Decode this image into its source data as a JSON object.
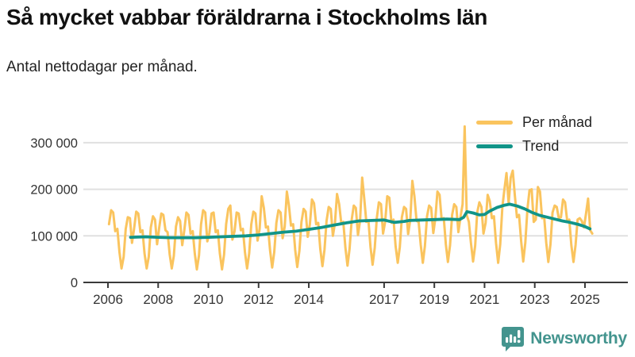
{
  "page": {
    "title": "Så mycket vabbar föräldrarna i Stockholms län",
    "subtitle": "Antal nettodagar per månad."
  },
  "footer": {
    "brand": "Newsworthy"
  },
  "colors": {
    "monthly_line": "#fac45e",
    "trend_line": "#119488",
    "brand_teal": "#43948e",
    "grid": "#e0e0e0",
    "axis": "#3a3a3a",
    "tick_text": "#333333"
  },
  "chart_data": {
    "type": "line",
    "title": "Så mycket vabbar föräldrarna i Stockholms län",
    "subtitle": "Antal nettodagar per månad.",
    "xlabel": "",
    "ylabel": "Antal nettodagar per månad",
    "grid": "horizontal",
    "legend_position": "top-right",
    "ylim": [
      0,
      340000
    ],
    "yticks": [
      0,
      100000,
      200000,
      300000
    ],
    "ytick_labels": [
      "0",
      "100 000",
      "200 000",
      "300 000"
    ],
    "xtick_years": [
      2006,
      2008,
      2010,
      2012,
      2014,
      2017,
      2019,
      2021,
      2023,
      2025
    ],
    "x_range_years": [
      2006.0,
      2025.4
    ],
    "series": [
      {
        "name": "Per månad",
        "color": "#fac45e",
        "sampling": "monthly",
        "start_year": 2006,
        "start_month": 1,
        "values": [
          125000,
          155000,
          150000,
          110000,
          115000,
          65000,
          30000,
          55000,
          115000,
          140000,
          138000,
          85000,
          115000,
          152000,
          148000,
          108000,
          112000,
          62000,
          30000,
          55000,
          118000,
          142000,
          135000,
          82000,
          118000,
          148000,
          145000,
          112000,
          108000,
          60000,
          30000,
          57000,
          120000,
          140000,
          132000,
          80000,
          112000,
          150000,
          145000,
          105000,
          110000,
          62000,
          28000,
          58000,
          125000,
          155000,
          150000,
          88000,
          106000,
          148000,
          150000,
          108000,
          112000,
          62000,
          28000,
          60000,
          125000,
          158000,
          165000,
          92000,
          110000,
          150000,
          148000,
          112000,
          115000,
          65000,
          30000,
          62000,
          125000,
          152000,
          148000,
          90000,
          115000,
          185000,
          160000,
          118000,
          120000,
          68000,
          32000,
          65000,
          128000,
          155000,
          150000,
          95000,
          120000,
          195000,
          165000,
          122000,
          125000,
          70000,
          33000,
          68000,
          130000,
          158000,
          152000,
          98000,
          125000,
          178000,
          170000,
          125000,
          128000,
          72000,
          35000,
          70000,
          132000,
          162000,
          158000,
          100000,
          128000,
          190000,
          168000,
          128000,
          130000,
          74000,
          36000,
          72000,
          135000,
          165000,
          160000,
          102000,
          132000,
          225000,
          180000,
          130000,
          132000,
          76000,
          38000,
          74000,
          138000,
          172000,
          168000,
          105000,
          130000,
          185000,
          182000,
          128000,
          135000,
          78000,
          42000,
          76000,
          140000,
          162000,
          158000,
          104000,
          135000,
          218000,
          185000,
          132000,
          130000,
          80000,
          42000,
          78000,
          142000,
          165000,
          160000,
          106000,
          138000,
          195000,
          188000,
          135000,
          138000,
          82000,
          44000,
          80000,
          145000,
          168000,
          162000,
          108000,
          140000,
          168000,
          335000,
          145000,
          130000,
          85000,
          45000,
          78000,
          150000,
          172000,
          162000,
          105000,
          128000,
          188000,
          175000,
          138000,
          142000,
          85000,
          42000,
          82000,
          162000,
          200000,
          235000,
          170000,
          225000,
          240000,
          185000,
          140000,
          145000,
          88000,
          45000,
          85000,
          158000,
          198000,
          200000,
          130000,
          135000,
          205000,
          195000,
          138000,
          140000,
          85000,
          44000,
          82000,
          150000,
          165000,
          162000,
          138000,
          140000,
          178000,
          172000,
          132000,
          135000,
          80000,
          44000,
          80000,
          135000,
          138000,
          132000,
          118000,
          148000,
          180000,
          112000,
          105000
        ]
      },
      {
        "name": "Trend",
        "color": "#119488",
        "sampling": "smoothed-anchors",
        "points": [
          [
            2006.9,
            97000
          ],
          [
            2007.5,
            98000
          ],
          [
            2008.0,
            97000
          ],
          [
            2008.5,
            96000
          ],
          [
            2009.0,
            96000
          ],
          [
            2009.5,
            96000
          ],
          [
            2010.0,
            97000
          ],
          [
            2010.5,
            98000
          ],
          [
            2011.0,
            99000
          ],
          [
            2011.5,
            100000
          ],
          [
            2012.0,
            102000
          ],
          [
            2012.5,
            105000
          ],
          [
            2013.0,
            108000
          ],
          [
            2013.5,
            110000
          ],
          [
            2014.0,
            114000
          ],
          [
            2014.5,
            118000
          ],
          [
            2015.0,
            123000
          ],
          [
            2015.5,
            128000
          ],
          [
            2016.0,
            132000
          ],
          [
            2016.5,
            133000
          ],
          [
            2017.0,
            134000
          ],
          [
            2017.4,
            129000
          ],
          [
            2017.8,
            131000
          ],
          [
            2018.0,
            133000
          ],
          [
            2018.5,
            134000
          ],
          [
            2019.0,
            135000
          ],
          [
            2019.5,
            136000
          ],
          [
            2020.0,
            135000
          ],
          [
            2020.17,
            140000
          ],
          [
            2020.3,
            152000
          ],
          [
            2020.55,
            149000
          ],
          [
            2020.8,
            145000
          ],
          [
            2021.0,
            146000
          ],
          [
            2021.2,
            153000
          ],
          [
            2021.5,
            161000
          ],
          [
            2021.8,
            166000
          ],
          [
            2022.0,
            168000
          ],
          [
            2022.3,
            164000
          ],
          [
            2022.6,
            158000
          ],
          [
            2022.9,
            150000
          ],
          [
            2023.2,
            144000
          ],
          [
            2023.5,
            140000
          ],
          [
            2023.8,
            136000
          ],
          [
            2024.1,
            132000
          ],
          [
            2024.4,
            129000
          ],
          [
            2024.7,
            125000
          ],
          [
            2025.0,
            120000
          ],
          [
            2025.2,
            115000
          ]
        ]
      }
    ]
  }
}
